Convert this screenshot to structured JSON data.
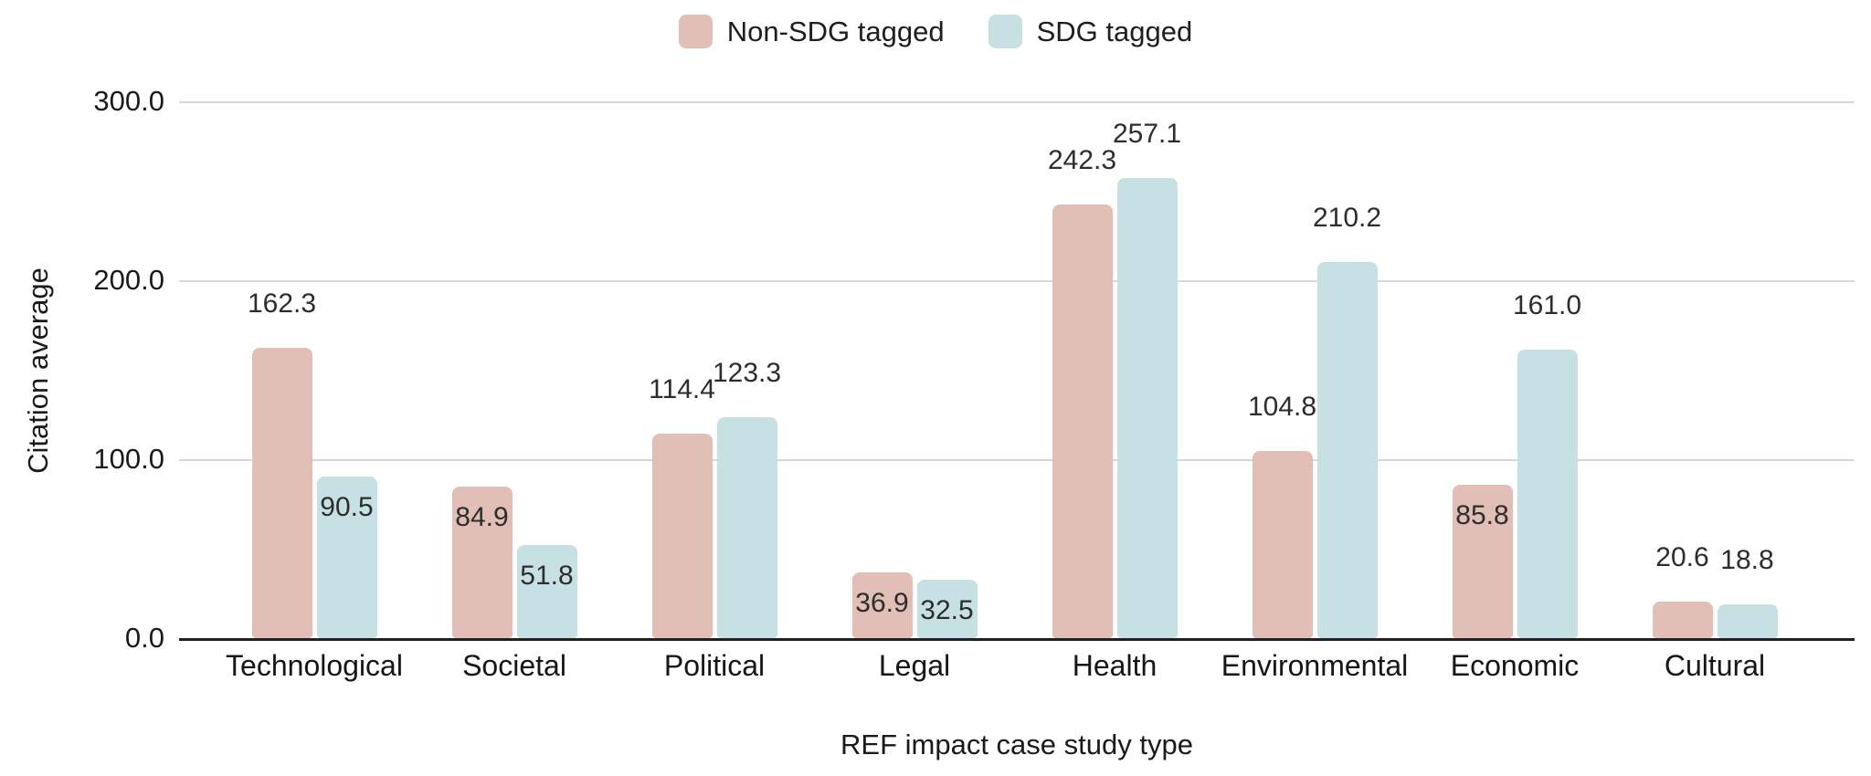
{
  "legend": {
    "items": [
      {
        "label": "Non-SDG tagged",
        "color": "#e1beb6"
      },
      {
        "label": "SDG tagged",
        "color": "#c7e0e4"
      }
    ]
  },
  "y_axis": {
    "title": "Citation average",
    "tick_labels": [
      "300.0",
      "200.0",
      "100.0",
      "0.0"
    ]
  },
  "x_axis": {
    "title": "REF impact case study type"
  },
  "chart_data": {
    "type": "bar",
    "title": "",
    "categories": [
      "Technological",
      "Societal",
      "Political",
      "Legal",
      "Health",
      "Environmental",
      "Economic",
      "Cultural"
    ],
    "series": [
      {
        "name": "Non-SDG tagged",
        "color": "#e1beb6",
        "values": [
          162.3,
          84.9,
          114.4,
          36.9,
          242.3,
          104.8,
          85.8,
          20.6
        ],
        "label_positions": [
          "above",
          "inside",
          "above",
          "inside",
          "above",
          "above",
          "inside",
          "above"
        ]
      },
      {
        "name": "SDG tagged",
        "color": "#c7e0e4",
        "values": [
          90.5,
          51.8,
          123.3,
          32.5,
          257.1,
          210.2,
          161.0,
          18.8
        ],
        "label_positions": [
          "inside",
          "inside",
          "above",
          "inside",
          "above",
          "above",
          "above",
          "above"
        ]
      }
    ],
    "xlabel": "REF impact case study type",
    "ylabel": "Citation average",
    "ylim": [
      0,
      300
    ],
    "ytick_values": [
      300,
      200,
      100,
      0
    ],
    "grid": "horizontal",
    "legend_position": "top",
    "label_format": "one_decimal",
    "baseline_color": "#212121",
    "gridline_color": "#d8d8d8"
  }
}
